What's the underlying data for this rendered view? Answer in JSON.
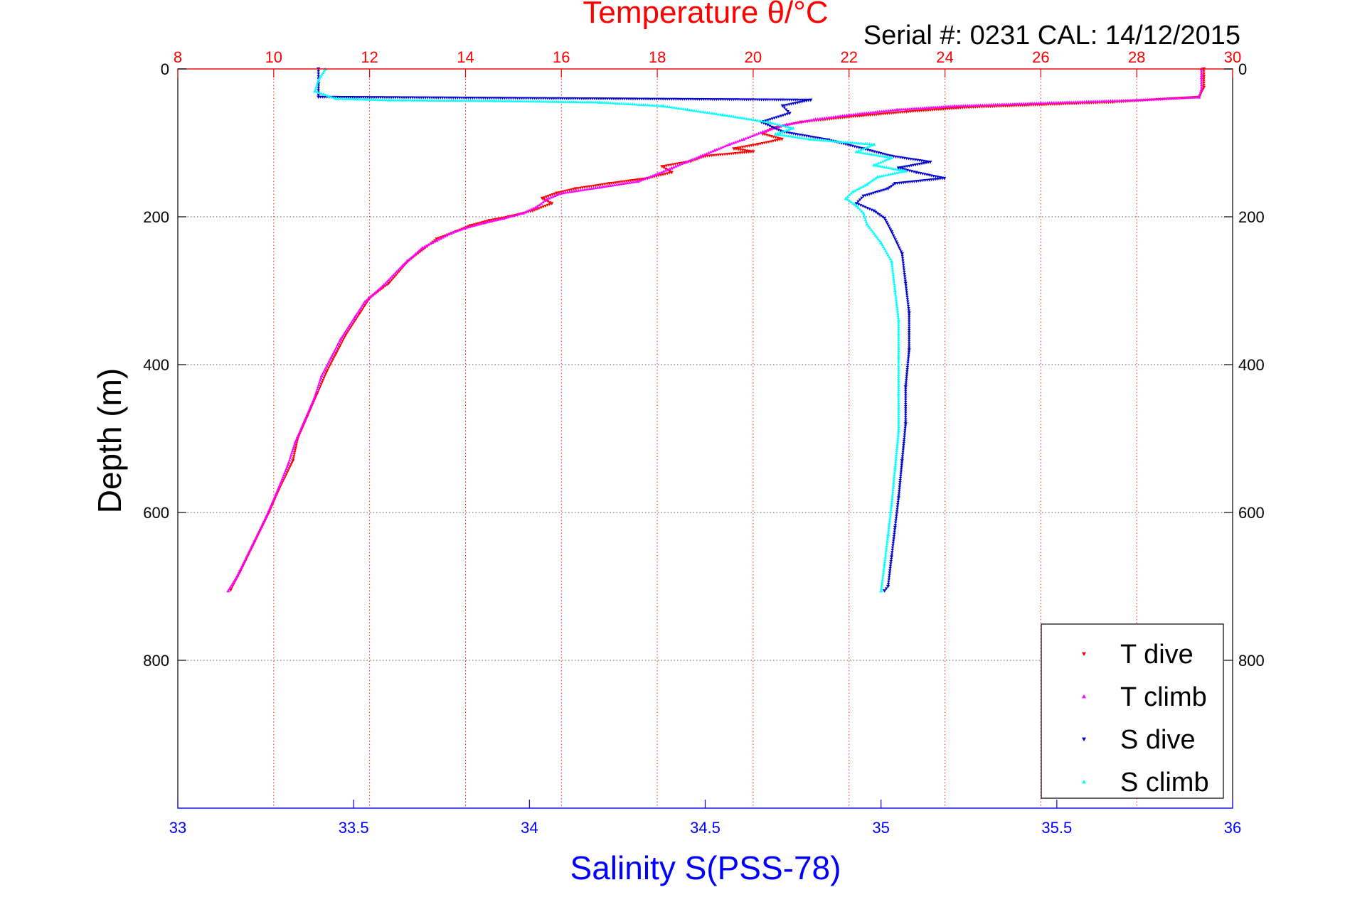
{
  "chart_data": {
    "type": "scatter",
    "title": "Temperature θ/°C",
    "subtitle": "Serial #: 0231  CAL: 14/12/2015",
    "ylabel": "Depth (m)",
    "xlabel_bottom": "Salinity S(PSS-78)",
    "x_top": {
      "label": "Temperature θ/°C",
      "range": [
        8,
        30
      ],
      "ticks": [
        "8",
        "10",
        "12",
        "14",
        "16",
        "18",
        "20",
        "22",
        "24",
        "26",
        "28",
        "30"
      ]
    },
    "x_bottom": {
      "label": "Salinity S(PSS-78)",
      "range": [
        33,
        36
      ],
      "ticks": [
        "33",
        "33.5",
        "34",
        "34.5",
        "35",
        "35.5",
        "36"
      ]
    },
    "y": {
      "range": [
        0,
        1000
      ],
      "reversed": true,
      "ticks": [
        "0",
        "200",
        "400",
        "600",
        "800"
      ]
    },
    "grid": true,
    "legend_position": "bottom-right",
    "colors": {
      "t_dive": "#ff0000",
      "t_climb": "#ff00ff",
      "s_dive": "#0000cc",
      "s_climb": "#00ffff",
      "temp_axis": "#ff0000",
      "sal_axis": "#0000ff"
    },
    "series": [
      {
        "name": "T dive",
        "axis": "temperature",
        "color": "#ff0000",
        "marker": "triangle-down",
        "points": [
          [
            29.4,
            0
          ],
          [
            29.4,
            10
          ],
          [
            29.4,
            25
          ],
          [
            29.3,
            38
          ],
          [
            27.5,
            45
          ],
          [
            24.5,
            52
          ],
          [
            23.2,
            58
          ],
          [
            22,
            65
          ],
          [
            21,
            72
          ],
          [
            20.4,
            80
          ],
          [
            20.2,
            88
          ],
          [
            20.6,
            95
          ],
          [
            20.1,
            102
          ],
          [
            19.6,
            108
          ],
          [
            20,
            112
          ],
          [
            19,
            118
          ],
          [
            18.7,
            125
          ],
          [
            18.1,
            132
          ],
          [
            18.3,
            140
          ],
          [
            17.8,
            148
          ],
          [
            17,
            155
          ],
          [
            16.3,
            162
          ],
          [
            15.9,
            168
          ],
          [
            15.6,
            175
          ],
          [
            15.8,
            182
          ],
          [
            15.4,
            192
          ],
          [
            14.9,
            200
          ],
          [
            14.5,
            205
          ],
          [
            14.1,
            212
          ],
          [
            13.8,
            220
          ],
          [
            13.4,
            230
          ],
          [
            13.2,
            240
          ],
          [
            12.8,
            260
          ],
          [
            12.4,
            290
          ],
          [
            12,
            310
          ],
          [
            11.8,
            330
          ],
          [
            11.5,
            360
          ],
          [
            11.3,
            385
          ],
          [
            11.1,
            410
          ],
          [
            10.9,
            440
          ],
          [
            10.7,
            470
          ],
          [
            10.5,
            500
          ],
          [
            10.4,
            530
          ],
          [
            10.1,
            570
          ],
          [
            9.9,
            600
          ],
          [
            9.6,
            640
          ],
          [
            9.3,
            680
          ],
          [
            9.1,
            705
          ]
        ]
      },
      {
        "name": "T climb",
        "axis": "temperature",
        "color": "#ff00ff",
        "marker": "triangle-up",
        "points": [
          [
            29.35,
            0
          ],
          [
            29.35,
            12
          ],
          [
            29.35,
            28
          ],
          [
            29.3,
            38
          ],
          [
            28,
            42
          ],
          [
            26,
            46
          ],
          [
            24.2,
            50
          ],
          [
            23,
            55
          ],
          [
            22,
            62
          ],
          [
            21.3,
            68
          ],
          [
            20.7,
            75
          ],
          [
            20.2,
            85
          ],
          [
            19.8,
            95
          ],
          [
            19.5,
            102
          ],
          [
            19.2,
            110
          ],
          [
            18.9,
            118
          ],
          [
            18.6,
            126
          ],
          [
            18.3,
            134
          ],
          [
            18,
            142
          ],
          [
            17.6,
            152
          ],
          [
            16.8,
            160
          ],
          [
            16,
            168
          ],
          [
            15.7,
            176
          ],
          [
            15.5,
            186
          ],
          [
            15.2,
            195
          ],
          [
            14.8,
            202
          ],
          [
            14.4,
            208
          ],
          [
            14,
            215
          ],
          [
            13.7,
            222
          ],
          [
            13.4,
            232
          ],
          [
            13.1,
            242
          ],
          [
            12.7,
            265
          ],
          [
            12.3,
            292
          ],
          [
            11.9,
            315
          ],
          [
            11.7,
            335
          ],
          [
            11.4,
            365
          ],
          [
            11.2,
            390
          ],
          [
            11,
            415
          ],
          [
            10.85,
            445
          ],
          [
            10.65,
            475
          ],
          [
            10.45,
            505
          ],
          [
            10.3,
            535
          ],
          [
            10.05,
            575
          ],
          [
            9.85,
            605
          ],
          [
            9.55,
            645
          ],
          [
            9.25,
            685
          ],
          [
            9.05,
            706
          ]
        ]
      },
      {
        "name": "S dive",
        "axis": "salinity",
        "color": "#0000cc",
        "marker": "triangle-down",
        "points": [
          [
            33.4,
            0
          ],
          [
            33.4,
            20
          ],
          [
            33.4,
            38
          ],
          [
            34.8,
            42
          ],
          [
            34.72,
            50
          ],
          [
            34.74,
            60
          ],
          [
            34.66,
            72
          ],
          [
            34.72,
            85
          ],
          [
            34.85,
            96
          ],
          [
            34.95,
            108
          ],
          [
            35.03,
            118
          ],
          [
            35.14,
            126
          ],
          [
            35.05,
            134
          ],
          [
            35.1,
            140
          ],
          [
            35.18,
            148
          ],
          [
            35.04,
            155
          ],
          [
            35.02,
            162
          ],
          [
            34.95,
            172
          ],
          [
            34.93,
            182
          ],
          [
            34.98,
            192
          ],
          [
            35.01,
            202
          ],
          [
            35.03,
            220
          ],
          [
            35.06,
            250
          ],
          [
            35.07,
            290
          ],
          [
            35.08,
            330
          ],
          [
            35.08,
            380
          ],
          [
            35.07,
            430
          ],
          [
            35.07,
            480
          ],
          [
            35.06,
            530
          ],
          [
            35.05,
            580
          ],
          [
            35.04,
            620
          ],
          [
            35.03,
            660
          ],
          [
            35.02,
            700
          ],
          [
            35.01,
            706
          ]
        ]
      },
      {
        "name": "S climb",
        "axis": "salinity",
        "color": "#00ffff",
        "marker": "triangle-up",
        "points": [
          [
            33.42,
            0
          ],
          [
            33.4,
            15
          ],
          [
            33.39,
            30
          ],
          [
            33.45,
            40
          ],
          [
            33.6,
            42
          ],
          [
            33.9,
            43
          ],
          [
            34.2,
            45
          ],
          [
            34.38,
            50
          ],
          [
            34.45,
            55
          ],
          [
            34.55,
            62
          ],
          [
            34.68,
            72
          ],
          [
            34.75,
            80
          ],
          [
            34.7,
            88
          ],
          [
            34.8,
            95
          ],
          [
            34.98,
            102
          ],
          [
            34.93,
            112
          ],
          [
            35.03,
            120
          ],
          [
            34.98,
            130
          ],
          [
            35.07,
            138
          ],
          [
            34.99,
            146
          ],
          [
            34.96,
            156
          ],
          [
            34.92,
            166
          ],
          [
            34.9,
            175
          ],
          [
            34.93,
            185
          ],
          [
            34.95,
            195
          ],
          [
            34.96,
            210
          ],
          [
            35,
            235
          ],
          [
            35.03,
            260
          ],
          [
            35.04,
            300
          ],
          [
            35.05,
            340
          ],
          [
            35.05,
            390
          ],
          [
            35.05,
            440
          ],
          [
            35.05,
            490
          ],
          [
            35.04,
            540
          ],
          [
            35.03,
            590
          ],
          [
            35.02,
            630
          ],
          [
            35.01,
            670
          ],
          [
            35,
            706
          ]
        ]
      }
    ]
  }
}
